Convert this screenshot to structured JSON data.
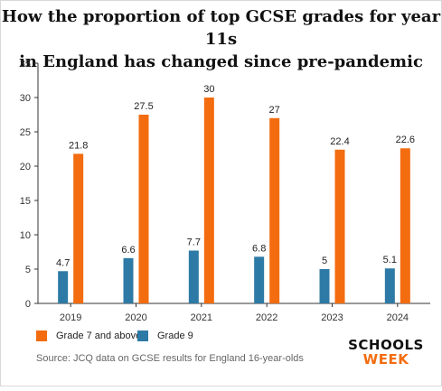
{
  "chart_data": {
    "type": "bar",
    "title": "How the proportion of top GCSE grades for year 11s in England has changed since pre-pandemic",
    "xlabel": "",
    "ylabel": "",
    "categories": [
      "2019",
      "2020",
      "2021",
      "2022",
      "2023",
      "2024"
    ],
    "series": [
      {
        "name": "Grade 9",
        "color": "#2e7aa6",
        "values": [
          4.7,
          6.6,
          7.7,
          6.8,
          5,
          5.1
        ]
      },
      {
        "name": "Grade 7 and above",
        "color": "#f36c10",
        "values": [
          21.8,
          27.5,
          30,
          27,
          22.4,
          22.6
        ]
      }
    ],
    "ylim": [
      0,
      35
    ],
    "yticks": [
      0,
      5,
      10,
      15,
      20,
      25,
      30,
      35
    ],
    "grid": false,
    "legend_position": "bottom-left",
    "data_labels": true
  },
  "title_line1": "How the proportion of top GCSE grades for year 11s",
  "title_line2": "in England has changed since pre-pandemic",
  "legend": {
    "item1": "Grade 7 and above",
    "item2": "Grade 9"
  },
  "source": "Source: JCQ data on GCSE results for England 16-year-olds",
  "logo": {
    "top": "SCHOOLS",
    "bottom": "WEEK"
  }
}
